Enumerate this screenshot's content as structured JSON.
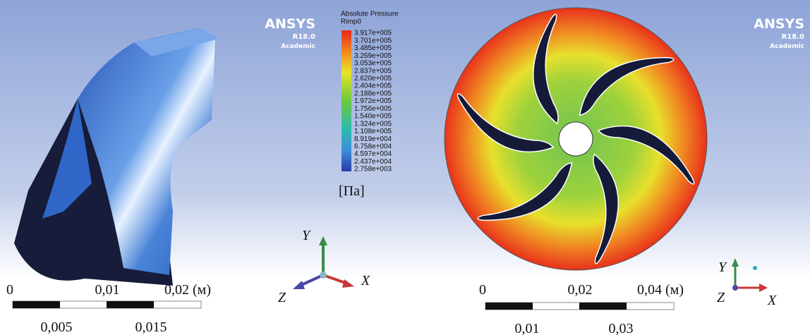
{
  "left_panel": {
    "logo": "ANSYS",
    "version": "R18.0",
    "license": "Academic",
    "legend": {
      "title": "Absolute Pressure",
      "subtitle": "Rimp0",
      "levels": [
        "3.917e+005",
        "3.701e+005",
        "3.485e+005",
        "3.269e+005",
        "3.053e+005",
        "2.837e+005",
        "2.620e+005",
        "2.404e+005",
        "2.188e+005",
        "1.972e+005",
        "1.756e+005",
        "1.540e+005",
        "1.324e+005",
        "1.108e+005",
        "8.919e+004",
        "6.758e+004",
        "4.597e+004",
        "2.437e+004",
        "2.758e+003"
      ],
      "unit": "[Па]"
    },
    "scale_bar": {
      "top_labels": [
        "0",
        "0,01",
        "0,02 (м)"
      ],
      "bottom_labels": [
        "0,005",
        "0,015"
      ]
    },
    "axes": {
      "y": "Y",
      "x": "X",
      "z": "Z"
    }
  },
  "right_panel": {
    "logo": "ANSYS",
    "version": "R18.0",
    "license": "Academic",
    "scale_bar": {
      "top_labels": [
        "0",
        "0,02",
        "0,04 (м)"
      ],
      "bottom_labels": [
        "0,01",
        "0,03"
      ]
    },
    "axes": {
      "y": "Y",
      "x": "X",
      "z": "Z"
    }
  }
}
